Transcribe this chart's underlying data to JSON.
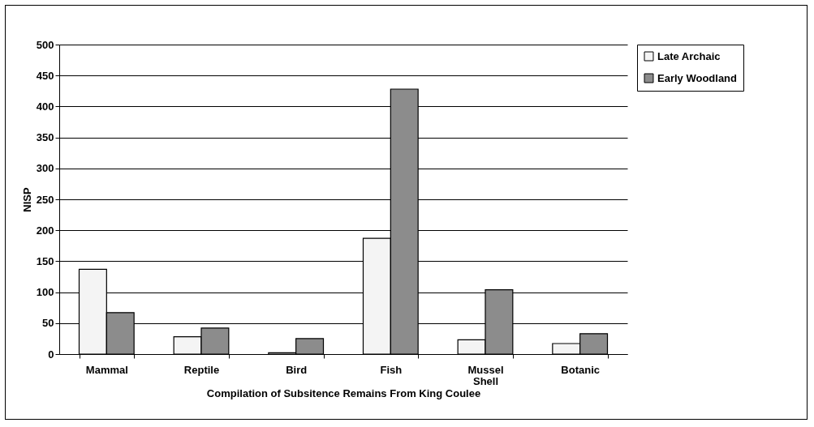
{
  "chart_data": {
    "type": "bar",
    "xlabel": "Compilation of Subsitence Remains From King Coulee",
    "ylabel": "NISP",
    "categories": [
      "Mammal",
      "Reptile",
      "Bird",
      "Fish",
      "Mussel Shell",
      "Botanic"
    ],
    "series": [
      {
        "name": "Late Archaic",
        "color": "#f4f4f4",
        "values": [
          137,
          28,
          2,
          187,
          23,
          17
        ]
      },
      {
        "name": "Early Woodland",
        "color": "#8c8c8c",
        "values": [
          67,
          42,
          25,
          428,
          104,
          33
        ]
      }
    ],
    "ylim": [
      0,
      500
    ],
    "yticks": [
      0,
      50,
      100,
      150,
      200,
      250,
      300,
      350,
      400,
      450,
      500
    ],
    "grid": "y",
    "legend": "right"
  }
}
